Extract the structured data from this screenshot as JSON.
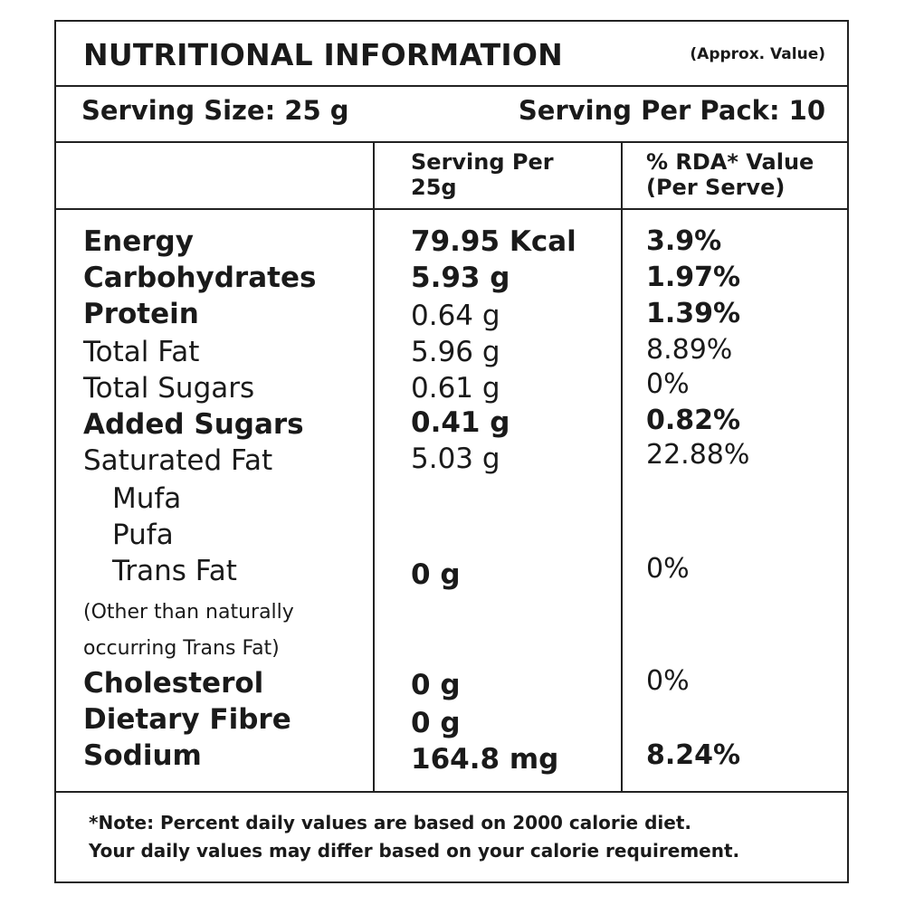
{
  "header": {
    "title": "NUTRITIONAL INFORMATION",
    "approx": "(Approx. Value)"
  },
  "serving": {
    "size": "Serving Size: 25 g",
    "per_pack": "Serving Per Pack: 10"
  },
  "columns": {
    "per_serving": "Serving Per\n25g",
    "rda": "% RDA* Value\n(Per Serve)"
  },
  "rows": [
    {
      "name": "Energy",
      "value": "79.95 Kcal",
      "rda": "3.9%"
    },
    {
      "name": "Carbohydrates",
      "value": "5.93 g",
      "rda": "1.97%"
    },
    {
      "name": "Protein",
      "value": "0.64 g",
      "rda": "1.39%"
    },
    {
      "name": "Total Fat",
      "value": "5.96 g",
      "rda": "8.89%"
    },
    {
      "name": "Total Sugars",
      "value": "0.61 g",
      "rda": "0%"
    },
    {
      "name": "Added Sugars",
      "value": "0.41 g",
      "rda": "0.82%"
    },
    {
      "name": "Saturated Fat",
      "value": "5.03 g",
      "rda": "22.88%"
    },
    {
      "name": "Mufa",
      "value": "",
      "rda": ""
    },
    {
      "name": "Pufa",
      "value": "",
      "rda": ""
    },
    {
      "name": "Trans Fat",
      "value": "0 g",
      "rda": "0%"
    },
    {
      "name": "Cholesterol",
      "value": "0 g",
      "rda": "0%"
    },
    {
      "name": "Dietary Fibre",
      "value": "0 g",
      "rda": ""
    },
    {
      "name": "Sodium",
      "value": "164.8 mg",
      "rda": "8.24%"
    }
  ],
  "trans_fat_note": {
    "line1": "(Other than naturally",
    "line2": "occurring Trans Fat)"
  },
  "footnote": "*Note: Percent daily values are based on 2000 calorie diet.\nYour daily values may differ based on your calorie requirement."
}
